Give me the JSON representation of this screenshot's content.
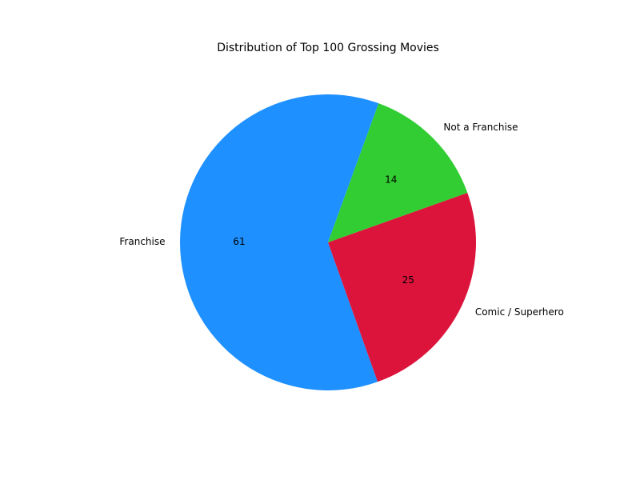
{
  "chart_data": {
    "type": "pie",
    "title": "Distribution of Top 100 Grossing Movies",
    "slices": [
      {
        "label": "Franchise",
        "value": 61,
        "color": "#1e90ff"
      },
      {
        "label": "Comic / Superhero",
        "value": 25,
        "color": "#dc143c"
      },
      {
        "label": "Not a Franchise",
        "value": 14,
        "color": "#32cd32"
      }
    ],
    "legend": "none",
    "start_angle_deg": 70,
    "direction": "counterclockwise"
  }
}
